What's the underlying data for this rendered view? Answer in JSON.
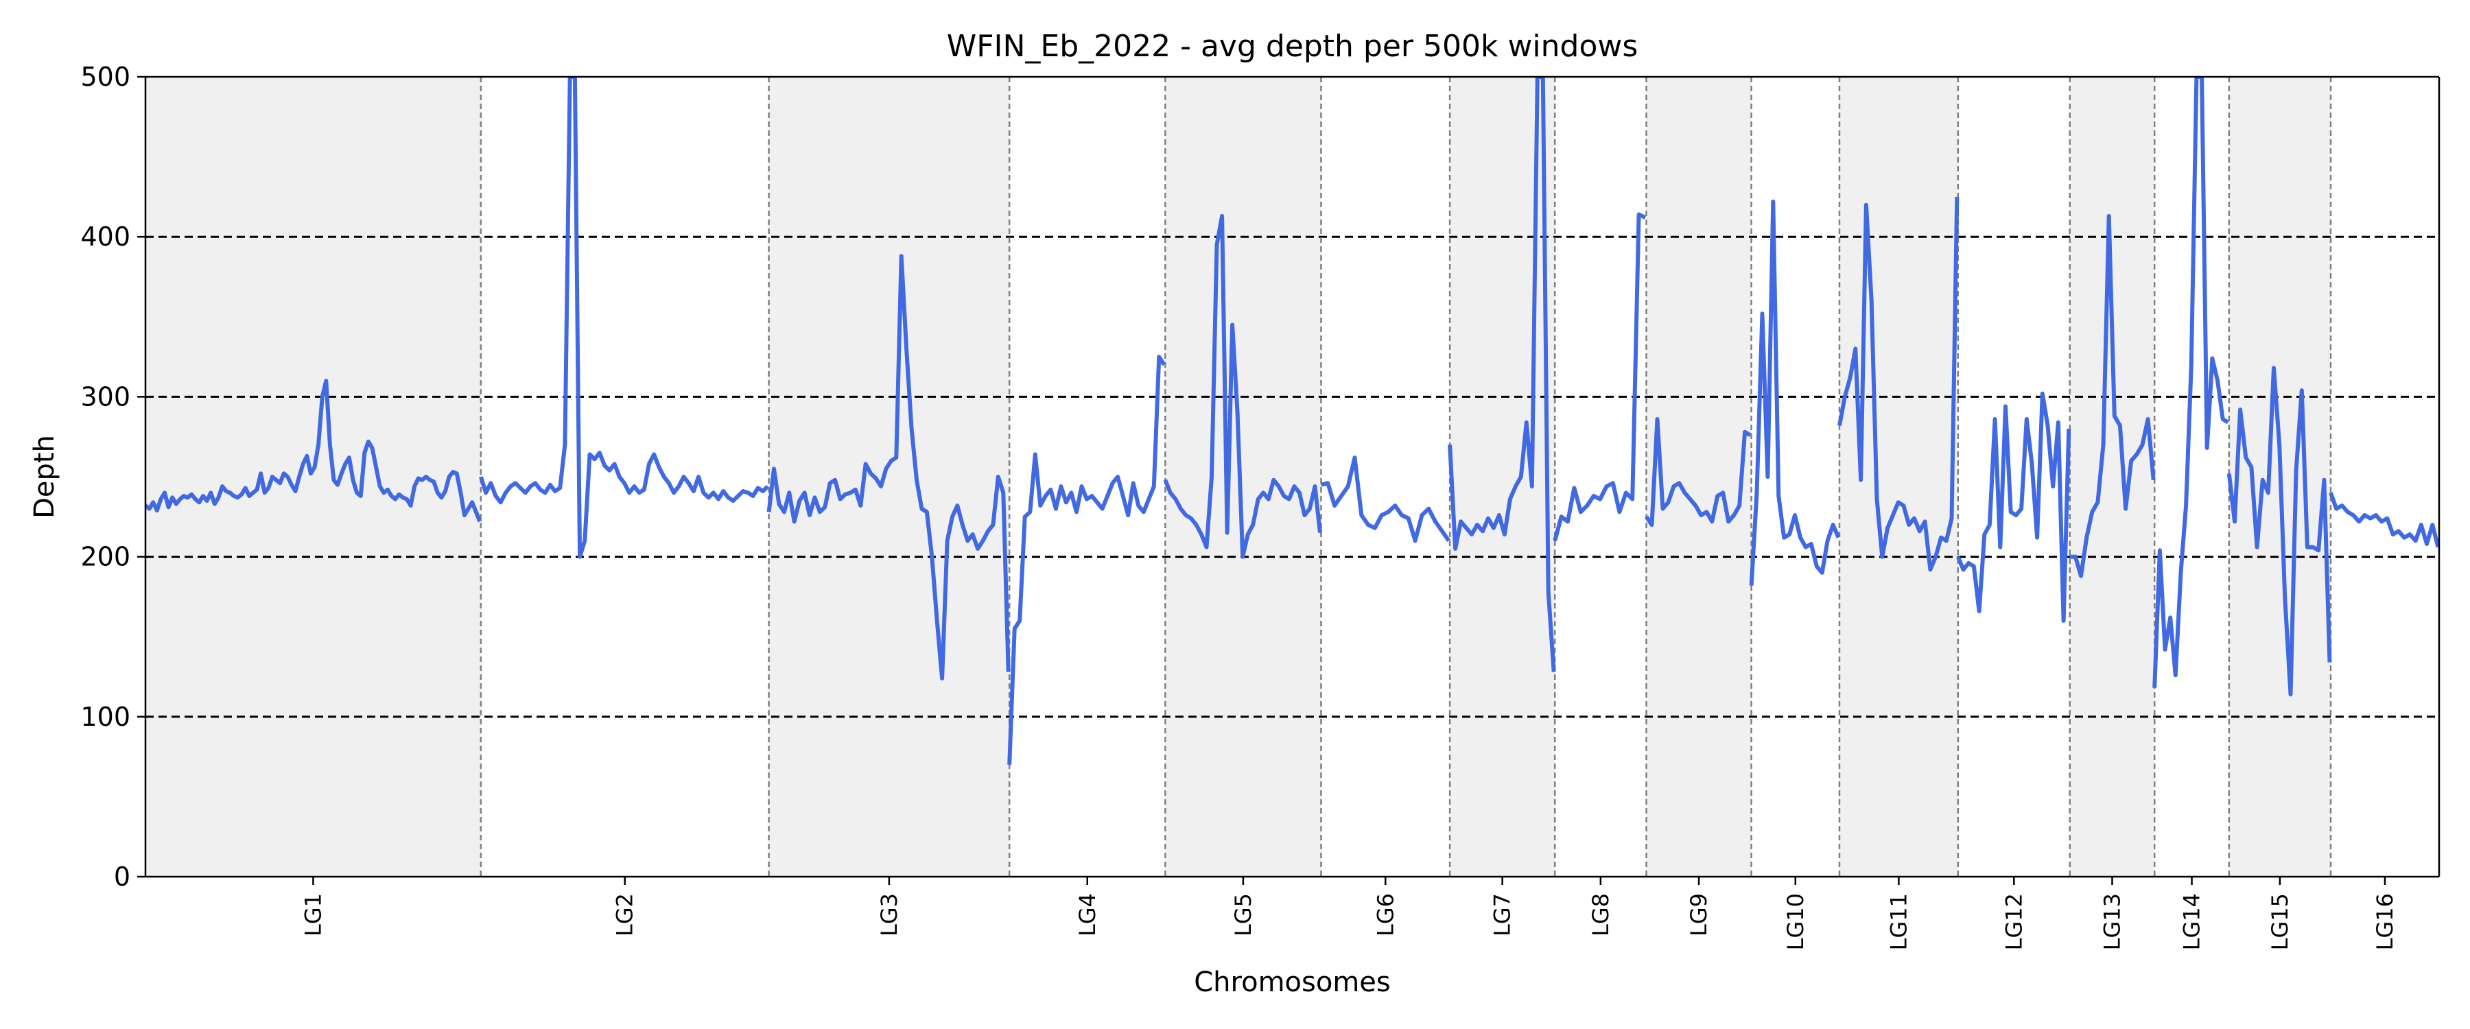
{
  "chart_data": {
    "type": "line",
    "title": "WFIN_Eb_2022 - avg depth per 500k windows",
    "xlabel": "Chromosomes",
    "ylabel": "Depth",
    "ylim": [
      0,
      500
    ],
    "yticks": [
      0,
      100,
      200,
      300,
      400,
      500
    ],
    "xlim": [
      0,
      677
    ],
    "reference_lines": [
      100,
      200,
      300,
      400
    ],
    "line_color": "#4169e1",
    "shade_color": "#f0f0f0",
    "separator_color": "#808080",
    "chromosomes": [
      {
        "name": "LG1",
        "start": 0,
        "end": 99,
        "shaded": true,
        "values": [
          232,
          230,
          234,
          229,
          236,
          240,
          231,
          237,
          233,
          236,
          238,
          237,
          239,
          236,
          234,
          238,
          235,
          240,
          233,
          237,
          244,
          241,
          240,
          238,
          237,
          239,
          243,
          238,
          240,
          242,
          252,
          240,
          243,
          250,
          248,
          246,
          252,
          250,
          245,
          241,
          250,
          258,
          263,
          252,
          256,
          270,
          300,
          310,
          270,
          248,
          245,
          252,
          258,
          262,
          248,
          240,
          238,
          265,
          272,
          268,
          256,
          244,
          240,
          242,
          238,
          236,
          239,
          237,
          236,
          232,
          244,
          249,
          248,
          250,
          248,
          247,
          240,
          237,
          241,
          250,
          253,
          252,
          240,
          226,
          230,
          234,
          228,
          222
        ]
      },
      {
        "name": "LG2",
        "start": 99,
        "end": 184,
        "shaded": false,
        "values": [
          250,
          240,
          246,
          238,
          234,
          240,
          244,
          246,
          243,
          240,
          244,
          246,
          242,
          240,
          245,
          241,
          243,
          270,
          500,
          500,
          200,
          210,
          264,
          261,
          265,
          257,
          254,
          258,
          250,
          246,
          240,
          244,
          240,
          242,
          258,
          264,
          256,
          250,
          246,
          240,
          244,
          250,
          246,
          241,
          250,
          240,
          237,
          240,
          236,
          241,
          237,
          235,
          238,
          241,
          240,
          238,
          243,
          241,
          244
        ]
      },
      {
        "name": "LG3",
        "start": 184,
        "end": 255,
        "shaded": true,
        "values": [
          228,
          255,
          233,
          228,
          240,
          222,
          235,
          240,
          226,
          237,
          228,
          231,
          246,
          248,
          236,
          239,
          240,
          242,
          232,
          258,
          252,
          249,
          244,
          255,
          260,
          262,
          388,
          330,
          280,
          248,
          230,
          228,
          200,
          160,
          124,
          210,
          225,
          232,
          220,
          210,
          214,
          205,
          210,
          216,
          220,
          250,
          240,
          128
        ]
      },
      {
        "name": "LG4",
        "start": 255,
        "end": 301,
        "shaded": false,
        "values": [
          70,
          155,
          160,
          225,
          228,
          264,
          232,
          238,
          242,
          230,
          244,
          234,
          240,
          228,
          244,
          236,
          238,
          234,
          230,
          238,
          246,
          250,
          238,
          226,
          246,
          232,
          228,
          236,
          244,
          325,
          320
        ]
      },
      {
        "name": "LG5",
        "start": 301,
        "end": 347,
        "shaded": true,
        "values": [
          248,
          240,
          236,
          230,
          226,
          224,
          220,
          214,
          206,
          250,
          395,
          413,
          215,
          345,
          290,
          200,
          214,
          220,
          236,
          240,
          236,
          248,
          244,
          238,
          236,
          244,
          240,
          226,
          230,
          244,
          215
        ]
      },
      {
        "name": "LG6",
        "start": 347,
        "end": 385,
        "shaded": false,
        "values": [
          245,
          246,
          232,
          238,
          244,
          262,
          226,
          220,
          218,
          226,
          228,
          232,
          226,
          224,
          210,
          226,
          230,
          222,
          216,
          210
        ]
      },
      {
        "name": "LG7",
        "start": 385,
        "end": 416,
        "shaded": true,
        "values": [
          270,
          205,
          222,
          218,
          214,
          220,
          216,
          224,
          218,
          226,
          214,
          236,
          244,
          250,
          284,
          244,
          500,
          500,
          178,
          128
        ]
      },
      {
        "name": "LG8",
        "start": 416,
        "end": 443,
        "shaded": false,
        "values": [
          210,
          225,
          222,
          243,
          228,
          232,
          238,
          236,
          244,
          246,
          228,
          240,
          236,
          414,
          412
        ]
      },
      {
        "name": "LG9",
        "start": 443,
        "end": 474,
        "shaded": true,
        "values": [
          225,
          220,
          286,
          230,
          234,
          244,
          246,
          240,
          236,
          232,
          226,
          228,
          222,
          238,
          240,
          222,
          226,
          232,
          278,
          276
        ]
      },
      {
        "name": "LG10",
        "start": 474,
        "end": 500,
        "shaded": false,
        "values": [
          182,
          240,
          352,
          250,
          422,
          238,
          212,
          214,
          226,
          212,
          206,
          208,
          194,
          190,
          210,
          220,
          212
        ]
      },
      {
        "name": "LG11",
        "start": 500,
        "end": 535,
        "shaded": true,
        "values": [
          282,
          300,
          312,
          330,
          248,
          420,
          360,
          236,
          200,
          218,
          226,
          234,
          232,
          220,
          224,
          216,
          222,
          192,
          200,
          212,
          210,
          224,
          425
        ]
      },
      {
        "name": "LG12",
        "start": 535,
        "end": 568,
        "shaded": false,
        "values": [
          200,
          192,
          196,
          194,
          166,
          214,
          220,
          286,
          206,
          294,
          228,
          226,
          230,
          286,
          258,
          212,
          302,
          282,
          244,
          284,
          160,
          280
        ]
      },
      {
        "name": "LG13",
        "start": 568,
        "end": 593,
        "shaded": true,
        "values": [
          200,
          200,
          188,
          212,
          228,
          234,
          270,
          413,
          288,
          282,
          230,
          260,
          264,
          270,
          286,
          248
        ]
      },
      {
        "name": "LG14",
        "start": 593,
        "end": 615,
        "shaded": false,
        "values": [
          118,
          204,
          142,
          162,
          126,
          190,
          232,
          320,
          500,
          500,
          268,
          324,
          310,
          286,
          284
        ]
      },
      {
        "name": "LG15",
        "start": 615,
        "end": 645,
        "shaded": true,
        "values": [
          252,
          222,
          292,
          262,
          256,
          206,
          248,
          240,
          318,
          270,
          174,
          114,
          254,
          304,
          206,
          206,
          204,
          248,
          134
        ]
      },
      {
        "name": "LG16",
        "start": 645,
        "end": 677,
        "shaded": false,
        "values": [
          240,
          230,
          232,
          228,
          226,
          222,
          226,
          224,
          226,
          222,
          224,
          214,
          216,
          212,
          214,
          210,
          220,
          208,
          220,
          206
        ]
      }
    ]
  }
}
